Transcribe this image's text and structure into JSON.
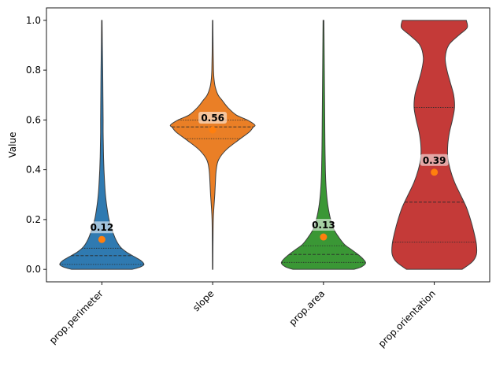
{
  "chart_data": {
    "type": "violin",
    "title": "",
    "xlabel": "",
    "ylabel": "Value",
    "ylim": [
      -0.05,
      1.05
    ],
    "yticks": [
      0.0,
      0.2,
      0.4,
      0.6,
      0.8,
      1.0
    ],
    "ytick_labels": [
      "0.0",
      "0.2",
      "0.4",
      "0.6",
      "0.8",
      "1.0"
    ],
    "grid": false,
    "legend": "none",
    "categories": [
      "prop.perimeter",
      "slope",
      "prop.area",
      "prop.orientation"
    ],
    "series": [
      {
        "category": "prop.perimeter",
        "color": "#2f7ab1",
        "min": 0.0,
        "max": 1.0,
        "mean": 0.12,
        "mean_label": "0.12",
        "quartiles": [
          0.02,
          0.055,
          0.085
        ],
        "density": [
          [
            0.0,
            0.72
          ],
          [
            0.01,
            0.92
          ],
          [
            0.02,
            1.0
          ],
          [
            0.035,
            0.93
          ],
          [
            0.05,
            0.78
          ],
          [
            0.07,
            0.58
          ],
          [
            0.09,
            0.44
          ],
          [
            0.12,
            0.33
          ],
          [
            0.16,
            0.24
          ],
          [
            0.2,
            0.17
          ],
          [
            0.25,
            0.12
          ],
          [
            0.3,
            0.085
          ],
          [
            0.35,
            0.065
          ],
          [
            0.4,
            0.05
          ],
          [
            0.45,
            0.04
          ],
          [
            0.5,
            0.035
          ],
          [
            0.55,
            0.03
          ],
          [
            0.6,
            0.03
          ],
          [
            0.7,
            0.025
          ],
          [
            0.8,
            0.02
          ],
          [
            0.9,
            0.012
          ],
          [
            1.0,
            0.006
          ]
        ]
      },
      {
        "category": "slope",
        "color": "#ea7f26",
        "min": 0.0,
        "max": 1.0,
        "mean": 0.56,
        "mean_label": "0.56",
        "quartiles": [
          0.525,
          0.572,
          0.6
        ],
        "density": [
          [
            0.0,
            0.005
          ],
          [
            0.1,
            0.008
          ],
          [
            0.2,
            0.015
          ],
          [
            0.25,
            0.03
          ],
          [
            0.3,
            0.05
          ],
          [
            0.35,
            0.065
          ],
          [
            0.4,
            0.085
          ],
          [
            0.44,
            0.14
          ],
          [
            0.48,
            0.32
          ],
          [
            0.52,
            0.62
          ],
          [
            0.55,
            0.86
          ],
          [
            0.57,
            0.96
          ],
          [
            0.58,
            1.0
          ],
          [
            0.6,
            0.82
          ],
          [
            0.62,
            0.56
          ],
          [
            0.65,
            0.36
          ],
          [
            0.68,
            0.22
          ],
          [
            0.7,
            0.13
          ],
          [
            0.73,
            0.065
          ],
          [
            0.76,
            0.035
          ],
          [
            0.8,
            0.02
          ],
          [
            0.9,
            0.01
          ],
          [
            1.0,
            0.005
          ]
        ]
      },
      {
        "category": "prop.area",
        "color": "#3a9735",
        "min": 0.0,
        "max": 1.0,
        "mean": 0.13,
        "mean_label": "0.13",
        "quartiles": [
          0.028,
          0.06,
          0.095
        ],
        "density": [
          [
            0.0,
            0.72
          ],
          [
            0.01,
            0.9
          ],
          [
            0.025,
            1.0
          ],
          [
            0.04,
            0.95
          ],
          [
            0.06,
            0.82
          ],
          [
            0.08,
            0.66
          ],
          [
            0.1,
            0.5
          ],
          [
            0.13,
            0.36
          ],
          [
            0.16,
            0.25
          ],
          [
            0.2,
            0.17
          ],
          [
            0.25,
            0.11
          ],
          [
            0.3,
            0.075
          ],
          [
            0.35,
            0.055
          ],
          [
            0.4,
            0.045
          ],
          [
            0.5,
            0.035
          ],
          [
            0.6,
            0.03
          ],
          [
            0.7,
            0.025
          ],
          [
            0.8,
            0.02
          ],
          [
            0.9,
            0.015
          ],
          [
            1.0,
            0.01
          ]
        ]
      },
      {
        "category": "prop.orientation",
        "color": "#c43a38",
        "min": 0.0,
        "max": 1.0,
        "mean": 0.39,
        "mean_label": "0.39",
        "quartiles": [
          0.11,
          0.27,
          0.65
        ],
        "density": [
          [
            0.0,
            0.66
          ],
          [
            0.03,
            0.9
          ],
          [
            0.06,
            1.0
          ],
          [
            0.1,
            1.0
          ],
          [
            0.15,
            0.94
          ],
          [
            0.2,
            0.86
          ],
          [
            0.25,
            0.76
          ],
          [
            0.3,
            0.62
          ],
          [
            0.35,
            0.48
          ],
          [
            0.4,
            0.38
          ],
          [
            0.45,
            0.32
          ],
          [
            0.5,
            0.32
          ],
          [
            0.55,
            0.36
          ],
          [
            0.6,
            0.43
          ],
          [
            0.65,
            0.48
          ],
          [
            0.7,
            0.46
          ],
          [
            0.75,
            0.38
          ],
          [
            0.8,
            0.3
          ],
          [
            0.85,
            0.26
          ],
          [
            0.9,
            0.34
          ],
          [
            0.94,
            0.58
          ],
          [
            0.97,
            0.78
          ],
          [
            1.0,
            0.76
          ]
        ]
      }
    ],
    "mean_marker_color": "#ff7f0e"
  }
}
